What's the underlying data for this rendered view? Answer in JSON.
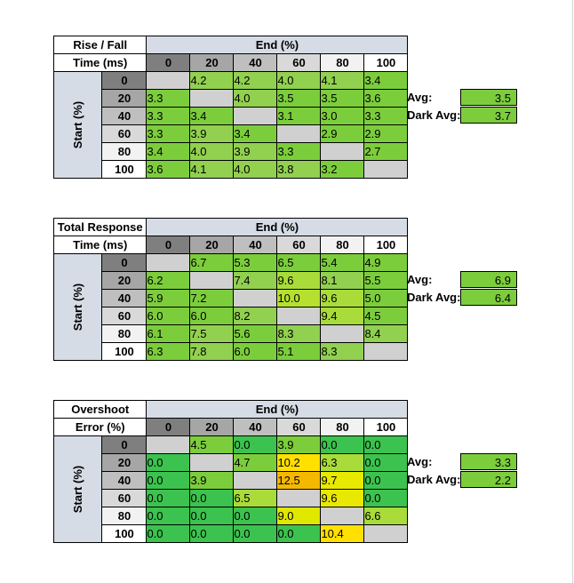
{
  "chart_data": [
    {
      "type": "table",
      "title_line1": "Rise / Fall",
      "title_line2": "Time (ms)",
      "col_header": "End (%)",
      "row_header": "Start (%)",
      "levels": [
        "0",
        "20",
        "40",
        "60",
        "80",
        "100"
      ],
      "rows": [
        [
          "",
          "4.2",
          "4.2",
          "4.0",
          "4.1",
          "3.4"
        ],
        [
          "3.3",
          "",
          "4.0",
          "3.5",
          "3.5",
          "3.6"
        ],
        [
          "3.3",
          "3.4",
          "",
          "3.1",
          "3.0",
          "3.3"
        ],
        [
          "3.3",
          "3.9",
          "3.4",
          "",
          "2.9",
          "2.9"
        ],
        [
          "3.4",
          "4.0",
          "3.9",
          "3.3",
          "",
          "2.7"
        ],
        [
          "3.6",
          "4.1",
          "4.0",
          "3.8",
          "3.2",
          ""
        ]
      ],
      "colors": [
        [
          "diag",
          "#92d050",
          "#92d050",
          "#92d050",
          "#92d050",
          "#7ccd3c"
        ],
        [
          "#7ccd3c",
          "diag",
          "#92d050",
          "#7ccd3c",
          "#7ccd3c",
          "#7ccd3c"
        ],
        [
          "#7ccd3c",
          "#7ccd3c",
          "diag",
          "#7ccd3c",
          "#7ccd3c",
          "#7ccd3c"
        ],
        [
          "#7ccd3c",
          "#92d050",
          "#7ccd3c",
          "diag",
          "#7ccd3c",
          "#7ccd3c"
        ],
        [
          "#7ccd3c",
          "#92d050",
          "#92d050",
          "#7ccd3c",
          "diag",
          "#7ccd3c"
        ],
        [
          "#7ccd3c",
          "#92d050",
          "#92d050",
          "#92d050",
          "#7ccd3c",
          "diag"
        ]
      ],
      "avg_label": "Avg:",
      "avg_value": "3.5",
      "dark_avg_label": "Dark Avg:",
      "dark_avg_value": "3.7",
      "avg_color": "#7ccd3c"
    },
    {
      "type": "table",
      "title_line1": "Total Response",
      "title_line2": "Time (ms)",
      "col_header": "End (%)",
      "row_header": "Start (%)",
      "levels": [
        "0",
        "20",
        "40",
        "60",
        "80",
        "100"
      ],
      "rows": [
        [
          "",
          "6.7",
          "5.3",
          "6.5",
          "5.4",
          "4.9"
        ],
        [
          "6.2",
          "",
          "7.4",
          "9.6",
          "8.1",
          "5.5"
        ],
        [
          "5.9",
          "7.2",
          "",
          "10.0",
          "9.6",
          "5.0"
        ],
        [
          "6.0",
          "6.0",
          "8.2",
          "",
          "9.4",
          "4.5"
        ],
        [
          "6.1",
          "7.5",
          "5.6",
          "8.3",
          "",
          "8.4"
        ],
        [
          "6.3",
          "7.8",
          "6.0",
          "5.1",
          "8.3",
          ""
        ]
      ],
      "colors": [
        [
          "diag",
          "#7ccd3c",
          "#7ccd3c",
          "#7ccd3c",
          "#7ccd3c",
          "#7ccd3c"
        ],
        [
          "#7ccd3c",
          "diag",
          "#92d050",
          "#a9dc3a",
          "#92d050",
          "#7ccd3c"
        ],
        [
          "#7ccd3c",
          "#7ccd3c",
          "diag",
          "#b6e030",
          "#a9dc3a",
          "#7ccd3c"
        ],
        [
          "#7ccd3c",
          "#7ccd3c",
          "#92d050",
          "diag",
          "#a9dc3a",
          "#7ccd3c"
        ],
        [
          "#7ccd3c",
          "#92d050",
          "#7ccd3c",
          "#92d050",
          "diag",
          "#92d050"
        ],
        [
          "#7ccd3c",
          "#92d050",
          "#7ccd3c",
          "#7ccd3c",
          "#92d050",
          "diag"
        ]
      ],
      "avg_label": "Avg:",
      "avg_value": "6.9",
      "dark_avg_label": "Dark Avg:",
      "dark_avg_value": "6.4",
      "avg_color": "#7ccd3c"
    },
    {
      "type": "table",
      "title_line1": "Overshoot",
      "title_line2": "Error (%)",
      "col_header": "End (%)",
      "row_header": "Start (%)",
      "levels": [
        "0",
        "20",
        "40",
        "60",
        "80",
        "100"
      ],
      "rows": [
        [
          "",
          "4.5",
          "0.0",
          "3.9",
          "0.0",
          "0.0"
        ],
        [
          "0.0",
          "",
          "4.7",
          "10.2",
          "6.3",
          "0.0"
        ],
        [
          "0.0",
          "3.9",
          "",
          "12.5",
          "9.7",
          "0.0"
        ],
        [
          "0.0",
          "0.0",
          "6.5",
          "",
          "9.6",
          "0.0"
        ],
        [
          "0.0",
          "0.0",
          "0.0",
          "9.0",
          "",
          "6.6"
        ],
        [
          "0.0",
          "0.0",
          "0.0",
          "0.0",
          "10.4",
          ""
        ]
      ],
      "colors": [
        [
          "diag",
          "#7ccd3c",
          "#3cc24e",
          "#7ccd3c",
          "#3cc24e",
          "#3cc24e"
        ],
        [
          "#3cc24e",
          "diag",
          "#7ccd3c",
          "#ffe000",
          "#a9dc3a",
          "#3cc24e"
        ],
        [
          "#3cc24e",
          "#7ccd3c",
          "diag",
          "#f5b800",
          "#e8e800",
          "#3cc24e"
        ],
        [
          "#3cc24e",
          "#3cc24e",
          "#a9dc3a",
          "diag",
          "#e8e800",
          "#3cc24e"
        ],
        [
          "#3cc24e",
          "#3cc24e",
          "#3cc24e",
          "#e0e800",
          "diag",
          "#a9dc3a"
        ],
        [
          "#3cc24e",
          "#3cc24e",
          "#3cc24e",
          "#3cc24e",
          "#ffe000",
          "diag"
        ]
      ],
      "avg_label": "Avg:",
      "avg_value": "3.3",
      "dark_avg_label": "Dark Avg:",
      "dark_avg_value": "2.2",
      "avg_color": "#7ccd3c"
    }
  ]
}
